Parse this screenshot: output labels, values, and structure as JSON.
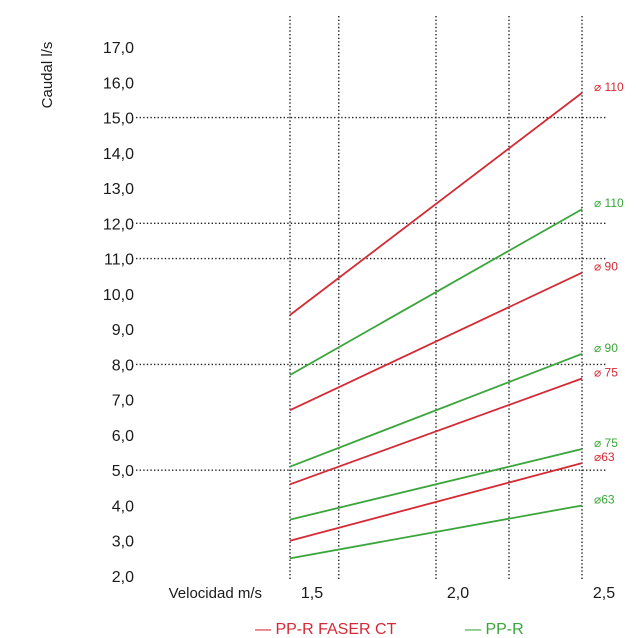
{
  "chart_data": {
    "type": "line",
    "xlabel": "Velocidad m/s",
    "ylabel": "Caudal l/s",
    "xlim": [
      1.5,
      2.5
    ],
    "ylim": [
      2.0,
      17.0
    ],
    "x_ticks": [
      "1,5",
      "2,0",
      "2,5"
    ],
    "y_ticks": [
      "2,0",
      "3,0",
      "4,0",
      "5,0",
      "6,0",
      "7,0",
      "8,0",
      "9,0",
      "10,0",
      "11,0",
      "12,0",
      "13,0",
      "14,0",
      "15,0",
      "16,0",
      "17,0"
    ],
    "grid_y": [
      5.0,
      8.0,
      11.0,
      12.0,
      15.0
    ],
    "grid_x": [
      1.5,
      1.667,
      2.0,
      2.25,
      2.5
    ],
    "legend_position": "bottom-center",
    "legend": [
      {
        "label": "— PP-R FASER CT",
        "color": "#d42a35"
      },
      {
        "label": "— PP-R",
        "color": "#3aa53a"
      }
    ],
    "series": [
      {
        "group": "PP-R FASER CT",
        "label": "⌀ 110",
        "color": "#d42a35",
        "x": [
          1.5,
          2.5
        ],
        "values": [
          9.4,
          15.7
        ]
      },
      {
        "group": "PP-R FASER CT",
        "label": "⌀ 90",
        "color": "#d42a35",
        "x": [
          1.5,
          2.5
        ],
        "values": [
          6.7,
          10.6
        ]
      },
      {
        "group": "PP-R FASER CT",
        "label": "⌀ 75",
        "color": "#d42a35",
        "x": [
          1.5,
          2.5
        ],
        "values": [
          4.6,
          7.6
        ]
      },
      {
        "group": "PP-R FASER CT",
        "label": "⌀63",
        "color": "#d42a35",
        "x": [
          1.5,
          2.5
        ],
        "values": [
          3.0,
          5.2
        ]
      },
      {
        "group": "PP-R",
        "label": "⌀ 110",
        "color": "#3aa53a",
        "x": [
          1.5,
          2.5
        ],
        "values": [
          7.7,
          12.4
        ]
      },
      {
        "group": "PP-R",
        "label": "⌀ 90",
        "color": "#3aa53a",
        "x": [
          1.5,
          2.5
        ],
        "values": [
          5.1,
          8.3
        ]
      },
      {
        "group": "PP-R",
        "label": "⌀ 75",
        "color": "#3aa53a",
        "x": [
          1.5,
          2.5
        ],
        "values": [
          3.6,
          5.6
        ]
      },
      {
        "group": "PP-R",
        "label": "⌀63",
        "color": "#3aa53a",
        "x": [
          1.5,
          2.5
        ],
        "values": [
          2.5,
          4.0
        ]
      }
    ]
  }
}
